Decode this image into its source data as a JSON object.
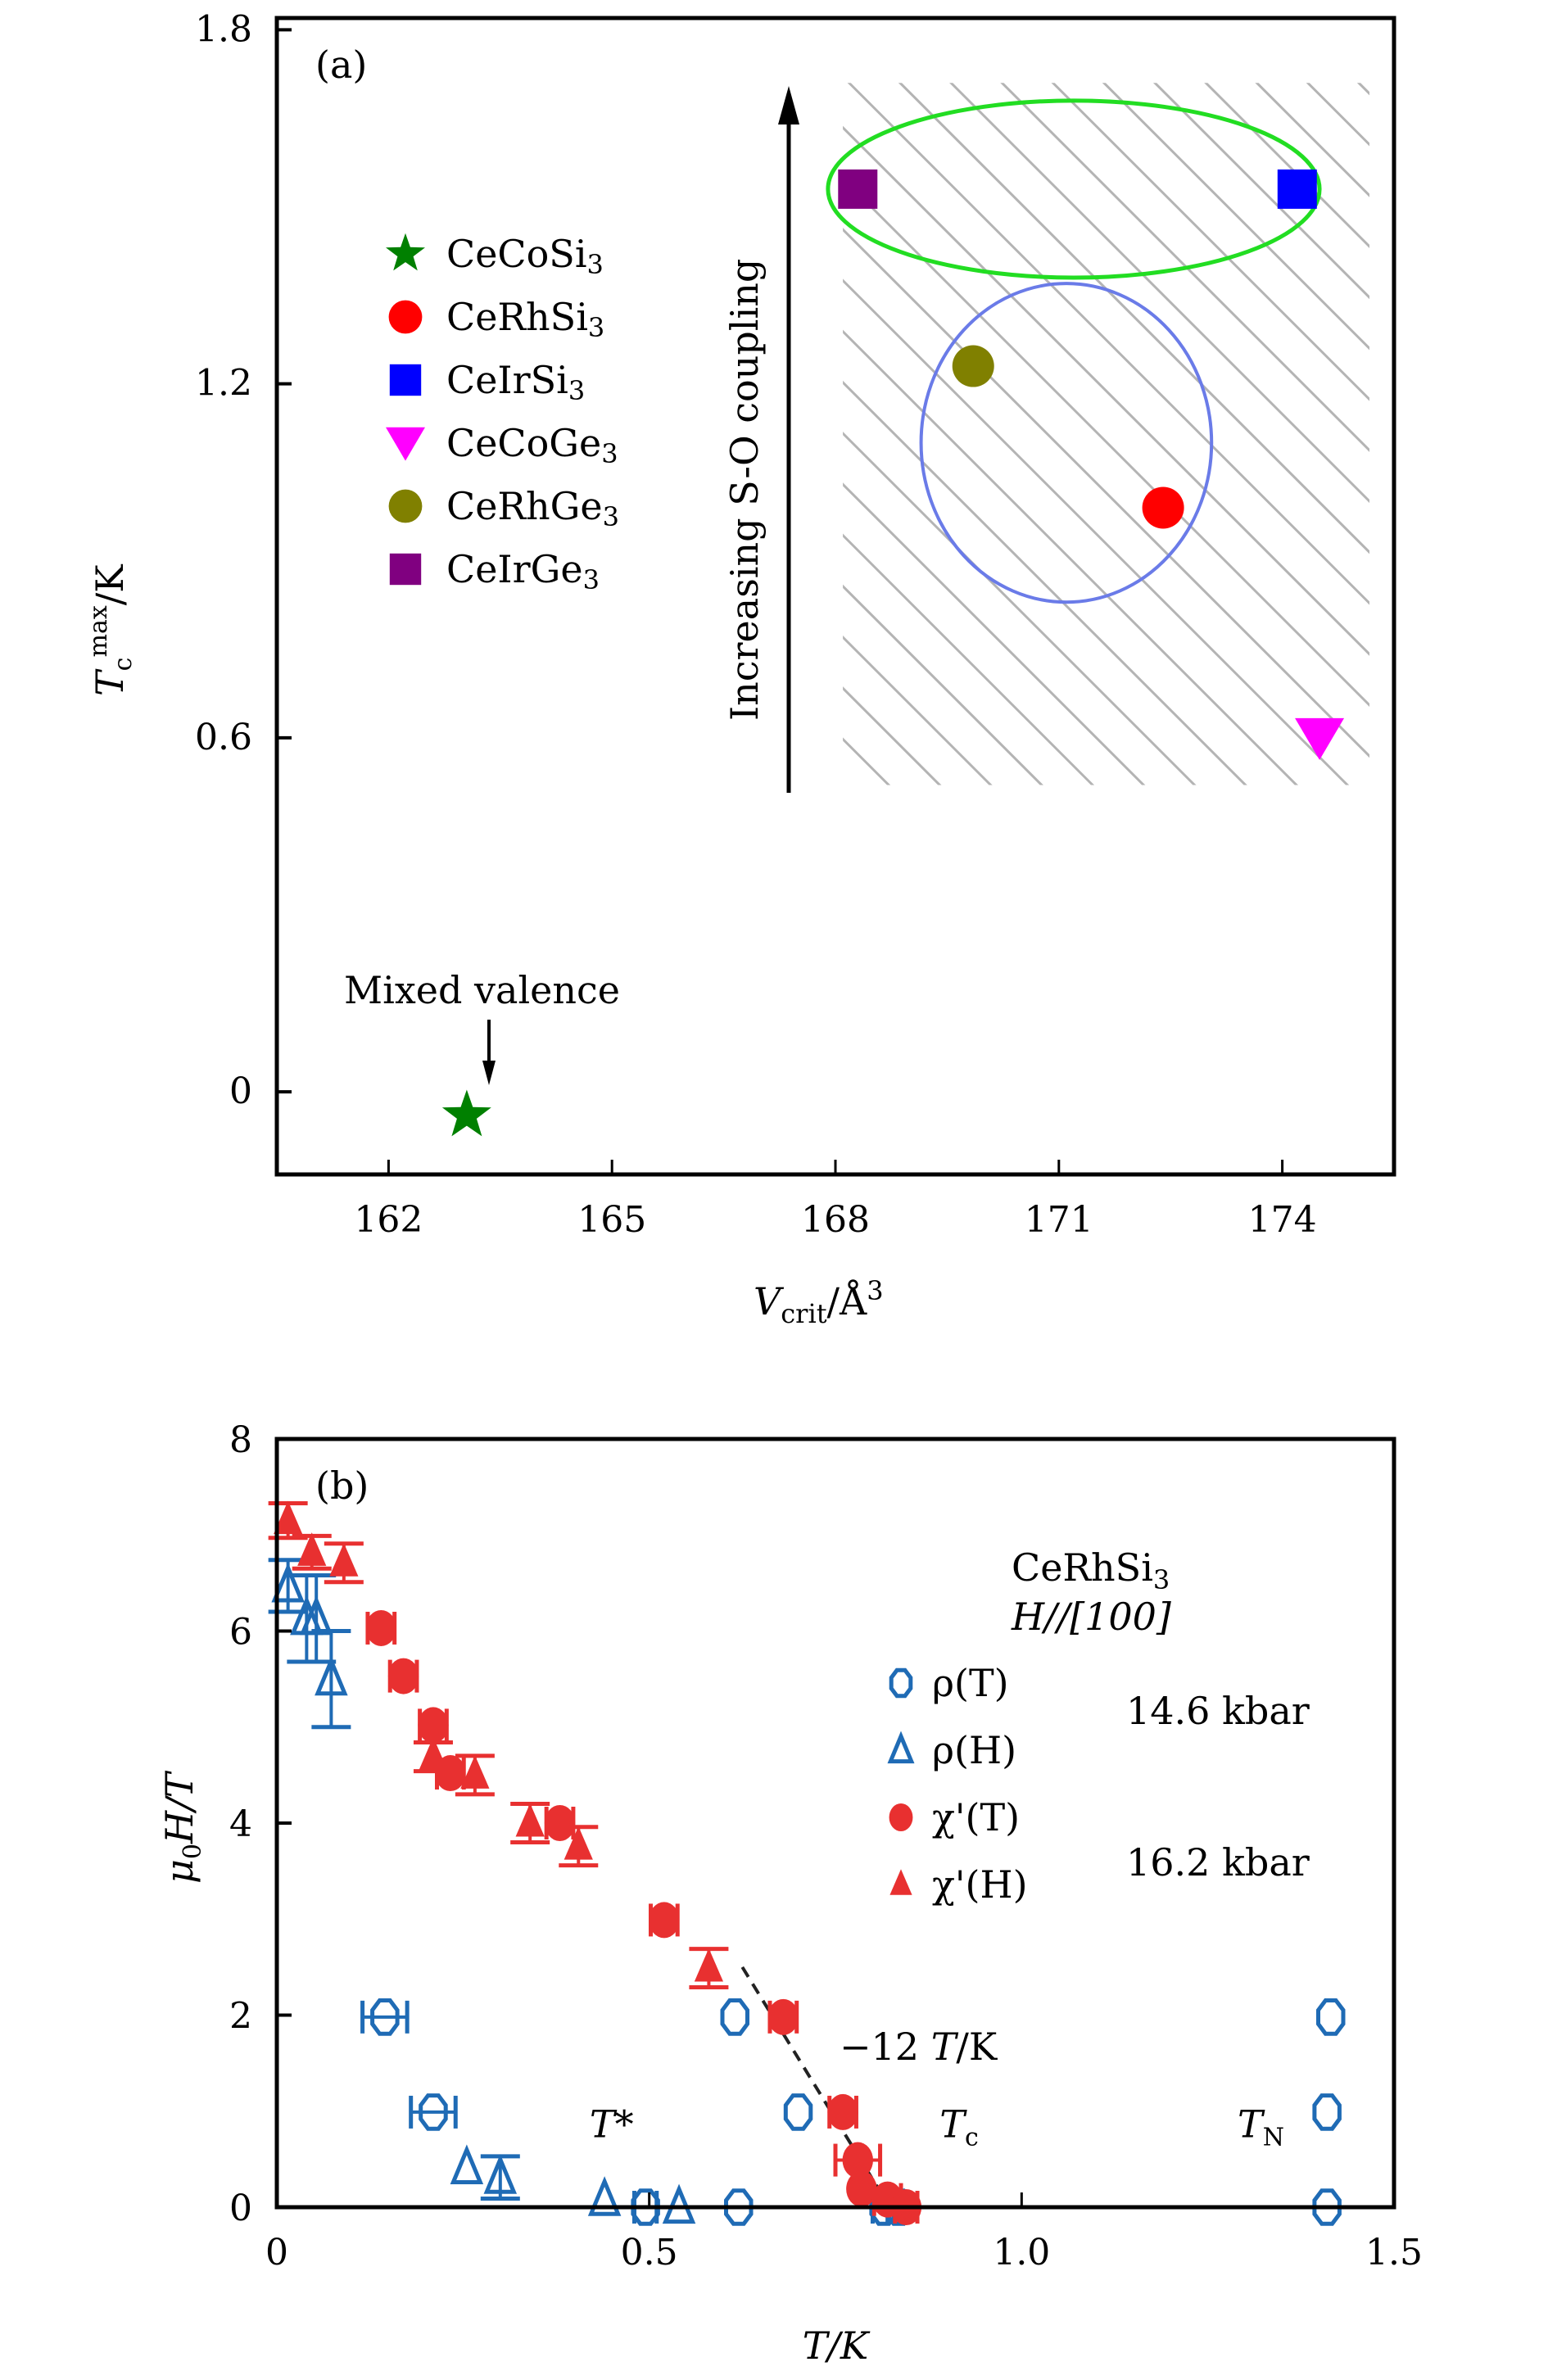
{
  "chart_data": [
    {
      "type": "scatter",
      "panel_label": "(a)",
      "xlabel": "V_crit/Å³",
      "xlabel_parts": {
        "main": "V",
        "sub": "crit",
        "rest": "/Å",
        "sup": "3"
      },
      "ylabel": "T_c^max/K",
      "ylabel_parts": {
        "main": "T",
        "sub": "c",
        "sup": "max",
        "rest": "/K"
      },
      "xlim": [
        160.5,
        175.5
      ],
      "ylim": [
        -0.14,
        1.82
      ],
      "xticks": [
        162,
        165,
        168,
        171,
        174
      ],
      "xtick_labels": [
        "162",
        "165",
        "168",
        "171",
        "174"
      ],
      "yticks": [
        0,
        0.6,
        1.2,
        1.8
      ],
      "ytick_labels": [
        "0",
        "0.6",
        "1.2",
        "1.8"
      ],
      "grid": false,
      "legend_position": "upper-left",
      "series": [
        {
          "name": "CeCoSi3",
          "label_main": "CeCoSi",
          "label_sub": "3",
          "marker": "star",
          "color": "#008000",
          "x": [
            163.05
          ],
          "y": [
            -0.04
          ]
        },
        {
          "name": "CeRhSi3",
          "label_main": "CeRhSi",
          "label_sub": "3",
          "marker": "circle",
          "color": "#ff0000",
          "x": [
            172.4
          ],
          "y": [
            0.99
          ]
        },
        {
          "name": "CeIrSi3",
          "label_main": "CeIrSi",
          "label_sub": "3",
          "marker": "square",
          "color": "#0000ff",
          "x": [
            174.2
          ],
          "y": [
            1.53
          ]
        },
        {
          "name": "CeCoGe3",
          "label_main": "CeCoGe",
          "label_sub": "3",
          "marker": "triangle-down",
          "color": "#ff00ff",
          "x": [
            174.5
          ],
          "y": [
            0.6
          ]
        },
        {
          "name": "CeRhGe3",
          "label_main": "CeRhGe",
          "label_sub": "3",
          "marker": "circle",
          "color": "#808000",
          "x": [
            169.85
          ],
          "y": [
            1.23
          ]
        },
        {
          "name": "CeIrGe3",
          "label_main": "CeIrGe",
          "label_sub": "3",
          "marker": "square",
          "color": "#800080",
          "x": [
            168.3
          ],
          "y": [
            1.53
          ]
        }
      ],
      "annotations": {
        "mixed_valence": "Mixed valence",
        "so_coupling": "Increasing S-O coupling",
        "hatched_region": {
          "x": [
            168.1,
            175.5
          ],
          "y": [
            0.52,
            1.71
          ]
        },
        "green_ellipse": {
          "cx": 171.2,
          "cy": 1.53,
          "rx": 3.3,
          "ry": 0.15,
          "color": "#22dd22"
        },
        "blue_circle": {
          "cx": 171.1,
          "cy": 1.1,
          "rx": 1.95,
          "ry": 0.27,
          "color": "#6a7be8"
        }
      }
    },
    {
      "type": "scatter",
      "panel_label": "(b)",
      "xlabel": "T/K",
      "ylabel": "μ0H/T",
      "ylabel_parts": {
        "main": "μ",
        "sub": "0",
        "rest": "H/T"
      },
      "xlim": [
        0,
        1.5
      ],
      "ylim": [
        0,
        8
      ],
      "xticks": [
        0,
        0.5,
        1.0,
        1.5
      ],
      "xtick_labels": [
        "0",
        "0.5",
        "1.0",
        "1.5"
      ],
      "yticks": [
        0,
        2,
        4,
        6,
        8
      ],
      "ytick_labels": [
        "0",
        "2",
        "4",
        "6",
        "8"
      ],
      "grid": false,
      "legend_position": "right",
      "title_annotation": {
        "compound_main": "CeRhSi",
        "compound_sub": "3",
        "field": "H//[100]"
      },
      "pressure_labels": [
        "14.6 kbar",
        "16.2 kbar"
      ],
      "series": [
        {
          "name": "ρ(T)",
          "marker": "circle-open",
          "color": "#1f6bb5",
          "x": [
            0.145,
            0.21,
            0.495,
            0.62,
            0.615,
            0.7,
            0.815,
            0.835,
            1.415,
            1.41,
            1.41
          ],
          "y": [
            1.98,
            0.99,
            0.0,
            0.0,
            1.98,
            0.99,
            0.0,
            0.0,
            1.98,
            0.99,
            0.0
          ],
          "xerr": [
            0.03,
            0.03,
            0.015,
            0,
            0,
            0,
            0.015,
            0.015,
            0,
            0,
            0
          ],
          "yerr": [
            0,
            0,
            0,
            0,
            0,
            0,
            0,
            0,
            0,
            0,
            0
          ]
        },
        {
          "name": "ρ(H)",
          "marker": "triangle-open",
          "color": "#1f6bb5",
          "x": [
            0.015,
            0.04,
            0.053,
            0.073,
            0.255,
            0.3,
            0.44,
            0.54
          ],
          "y": [
            6.47,
            6.13,
            6.13,
            5.5,
            0.41,
            0.31,
            0.08,
            0.0
          ],
          "xerr": [
            0,
            0,
            0,
            0,
            0,
            0,
            0,
            0
          ],
          "yerr": [
            0.27,
            0.45,
            0.45,
            0.5,
            0,
            0.22,
            0,
            0
          ]
        },
        {
          "name": "χ'(T)",
          "marker": "circle-filled",
          "color": "#e83030",
          "x": [
            0.14,
            0.17,
            0.21,
            0.233,
            0.38,
            0.52,
            0.68,
            0.76,
            0.78,
            0.785,
            0.82,
            0.845
          ],
          "y": [
            6.03,
            5.53,
            5.02,
            4.52,
            4.0,
            2.99,
            1.98,
            0.99,
            0.49,
            0.19,
            0.08,
            0.0
          ],
          "xerr": [
            0.018,
            0.018,
            0.018,
            0.018,
            0.018,
            0.018,
            0.018,
            0.018,
            0.03,
            0,
            0.018,
            0.015
          ],
          "yerr": [
            0,
            0,
            0,
            0,
            0,
            0,
            0,
            0,
            0,
            0,
            0,
            0
          ]
        },
        {
          "name": "χ'(H)",
          "marker": "triangle-filled",
          "color": "#e83030",
          "x": [
            0.015,
            0.047,
            0.09,
            0.21,
            0.266,
            0.34,
            0.405,
            0.58
          ],
          "y": [
            7.15,
            6.82,
            6.71,
            4.69,
            4.5,
            4.0,
            3.76,
            2.49
          ],
          "xerr": [
            0,
            0,
            0,
            0,
            0,
            0,
            0,
            0
          ],
          "yerr": [
            0.18,
            0.17,
            0.2,
            0.15,
            0.2,
            0.2,
            0.2,
            0.2
          ]
        }
      ],
      "fit_line": {
        "label": "−12 T/K",
        "slope_label_main": "−12 ",
        "slope_label_italic": "T",
        "slope_label_rest": "/K",
        "x": [
          0.625,
          0.815
        ],
        "y": [
          2.5,
          0.1
        ],
        "style": "dashed"
      },
      "phase_labels": [
        {
          "main": "T",
          "rest": "*",
          "x": 0.42,
          "y": 0.9
        },
        {
          "main": "T",
          "sub": "c",
          "x": 0.89,
          "y": 0.9
        },
        {
          "main": "T",
          "sub": "N",
          "x": 1.29,
          "y": 0.9
        }
      ]
    }
  ]
}
